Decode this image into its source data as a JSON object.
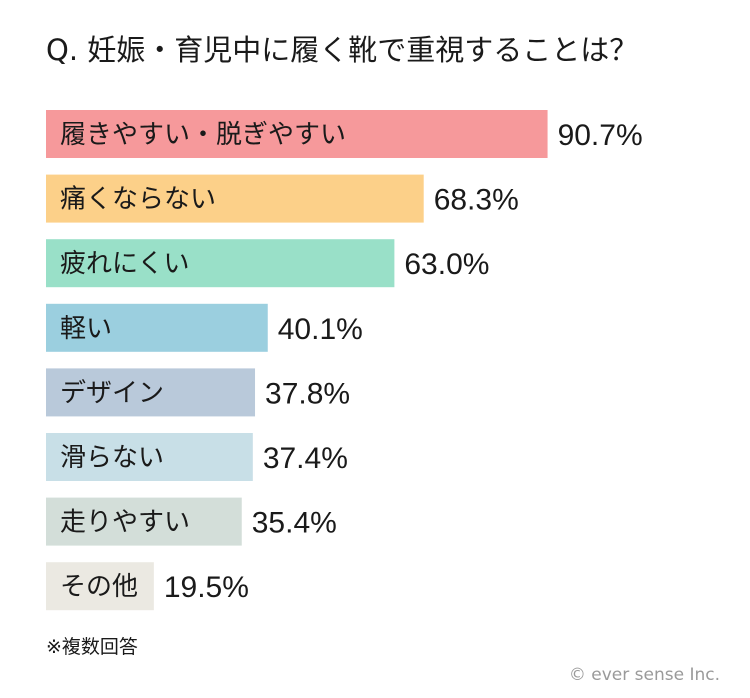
{
  "chart_data": {
    "type": "bar",
    "orientation": "horizontal",
    "title": "Q. 妊娠・育児中に履く靴で重視することは？",
    "categories": [
      "履きやすい・脱ぎやすい",
      "痛くならない",
      "疲れにくい",
      "軽い",
      "デザイン",
      "滑らない",
      "走りやすい",
      "その他"
    ],
    "values": [
      90.7,
      68.3,
      63.0,
      40.1,
      37.8,
      37.4,
      35.4,
      19.5
    ],
    "value_labels": [
      "90.7%",
      "68.3%",
      "63.0%",
      "40.1%",
      "37.8%",
      "37.4%",
      "35.4%",
      "19.5%"
    ],
    "colors": [
      "#f6999b",
      "#fcd089",
      "#99e0c8",
      "#9bcfdf",
      "#b9c9da",
      "#c8dfe7",
      "#d3ded9",
      "#ebe9e2"
    ],
    "xlim": [
      0,
      100
    ],
    "grid": false,
    "legend": "none"
  },
  "footnote": "※複数回答",
  "credit": "© ever sense Inc."
}
